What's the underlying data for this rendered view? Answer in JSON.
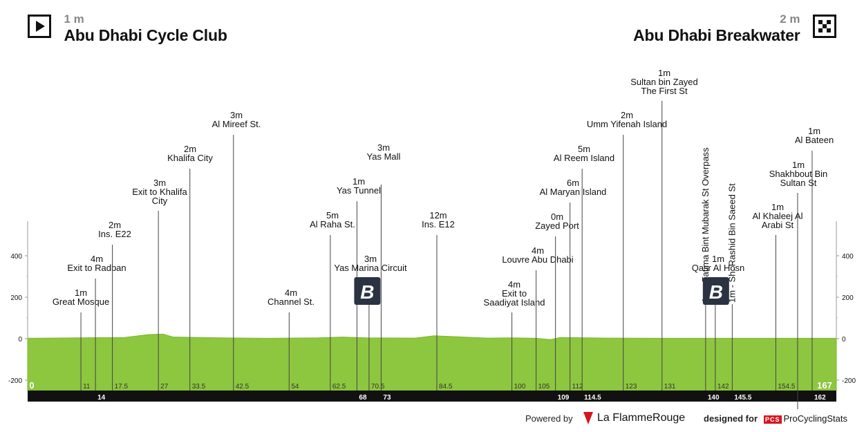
{
  "start": {
    "altitude": "1 m",
    "name": "Abu Dhabi Cycle Club",
    "icon": "play-icon"
  },
  "finish": {
    "altitude": "2 m",
    "name": "Abu Dhabi Breakwater",
    "icon": "checkered-flag-icon"
  },
  "footer": {
    "powered_by": "Powered by",
    "la_flamme_rouge": "La FlammeRouge",
    "designed_for": "designed for",
    "pcs_logo": "PCS",
    "pcs_name": "ProCyclingStats"
  },
  "chart_data": {
    "type": "area",
    "title": "",
    "xlabel": "",
    "ylabel": "",
    "xlim": [
      0,
      167
    ],
    "ylim": [
      -200,
      400
    ],
    "y_ticks": [
      -200,
      0,
      200,
      400
    ],
    "grid": false,
    "fill_color": "#8dc63f",
    "profile": [
      [
        0,
        2
      ],
      [
        10,
        4
      ],
      [
        20,
        6
      ],
      [
        25,
        20
      ],
      [
        28,
        22
      ],
      [
        30,
        8
      ],
      [
        40,
        4
      ],
      [
        50,
        2
      ],
      [
        60,
        4
      ],
      [
        65,
        8
      ],
      [
        70,
        4
      ],
      [
        80,
        3
      ],
      [
        84,
        14
      ],
      [
        88,
        10
      ],
      [
        95,
        3
      ],
      [
        100,
        4
      ],
      [
        105,
        2
      ],
      [
        108,
        -4
      ],
      [
        110,
        6
      ],
      [
        120,
        3
      ],
      [
        130,
        2
      ],
      [
        140,
        2
      ],
      [
        150,
        2
      ],
      [
        160,
        2
      ],
      [
        167,
        2
      ]
    ],
    "start_km_label": "0",
    "finish_km_label": "167",
    "waypoints": [
      {
        "km": 11,
        "km_label": "11",
        "row": "top",
        "lines": [
          "1m",
          "Great Mosque"
        ]
      },
      {
        "km": 14,
        "km_label": "14",
        "row": "bottom",
        "lines": [
          "4m",
          "Exit to Radban"
        ]
      },
      {
        "km": 17.5,
        "km_label": "17.5",
        "row": "top",
        "lines": [
          "2m",
          "Ins. E22"
        ]
      },
      {
        "km": 27,
        "km_label": "27",
        "row": "top",
        "lines": [
          "3m",
          "Exit to Khalifa",
          "City"
        ]
      },
      {
        "km": 33.5,
        "km_label": "33.5",
        "row": "top",
        "lines": [
          "2m",
          "Khalifa City"
        ]
      },
      {
        "km": 42.5,
        "km_label": "42.5",
        "row": "top",
        "lines": [
          "3m",
          "Al Mireef St."
        ]
      },
      {
        "km": 54,
        "km_label": "54",
        "row": "top",
        "lines": [
          "4m",
          "Channel St."
        ]
      },
      {
        "km": 62.5,
        "km_label": "62.5",
        "row": "top",
        "lines": [
          "5m",
          "Al Raha St."
        ]
      },
      {
        "km": 68,
        "km_label": "68",
        "row": "bottom",
        "lines": [
          "1m",
          "Yas Tunnel"
        ]
      },
      {
        "km": 70.5,
        "km_label": "70.5",
        "row": "top",
        "lines": [
          "3m",
          "Yas Marina Circuit"
        ]
      },
      {
        "km": 73,
        "km_label": "73",
        "row": "bottom",
        "lines": [
          "3m",
          "Yas Mall"
        ]
      },
      {
        "km": 84.5,
        "km_label": "84.5",
        "row": "top",
        "lines": [
          "12m",
          "Ins. E12"
        ]
      },
      {
        "km": 100,
        "km_label": "100",
        "row": "top",
        "lines": [
          "4m",
          "Exit to",
          "Saadiyat Island"
        ]
      },
      {
        "km": 105,
        "km_label": "105",
        "row": "top",
        "lines": [
          "4m",
          "Louvre Abu Dhabi"
        ]
      },
      {
        "km": 109,
        "km_label": "109",
        "row": "bottom",
        "lines": [
          "0m",
          "Zayed Port"
        ]
      },
      {
        "km": 112,
        "km_label": "112",
        "row": "top",
        "lines": [
          "6m",
          "Al Maryan Island"
        ]
      },
      {
        "km": 114.5,
        "km_label": "114.5",
        "row": "bottom",
        "lines": [
          "5m",
          "Al Reem Island"
        ]
      },
      {
        "km": 123,
        "km_label": "123",
        "row": "top",
        "lines": [
          "2m",
          "Umm Yifenah Island"
        ]
      },
      {
        "km": 131,
        "km_label": "131",
        "row": "top",
        "lines": [
          "1m",
          "Sultan bin Zayed",
          "The First St"
        ]
      },
      {
        "km": 140,
        "km_label": "140",
        "row": "bottom",
        "vertical": true,
        "vtext": "1m - Fatima Bint Mubarak St Overpass"
      },
      {
        "km": 142,
        "km_label": "142",
        "row": "top",
        "lines": [
          "1m",
          "Qasr Al Hosn"
        ]
      },
      {
        "km": 145.5,
        "km_label": "145.5",
        "row": "bottom",
        "vertical": true,
        "vtext": "1m - Sh. Rashid Bin Saeed St"
      },
      {
        "km": 154.5,
        "km_label": "154.5",
        "row": "top",
        "lines": [
          "1m",
          "Al Khaleej Al",
          "Arabi St"
        ]
      },
      {
        "km": 159,
        "km_label": "",
        "row": "none",
        "lines": [
          "1m",
          "Shakhbout Bin",
          "Sultan St"
        ]
      },
      {
        "km": 162,
        "km_label": "162",
        "row": "bottom",
        "lines": [
          "1m",
          "Al Bateen"
        ]
      }
    ],
    "bonus_sprints": [
      {
        "km": 68,
        "label": "B"
      },
      {
        "km": 140,
        "label": "B"
      }
    ]
  }
}
